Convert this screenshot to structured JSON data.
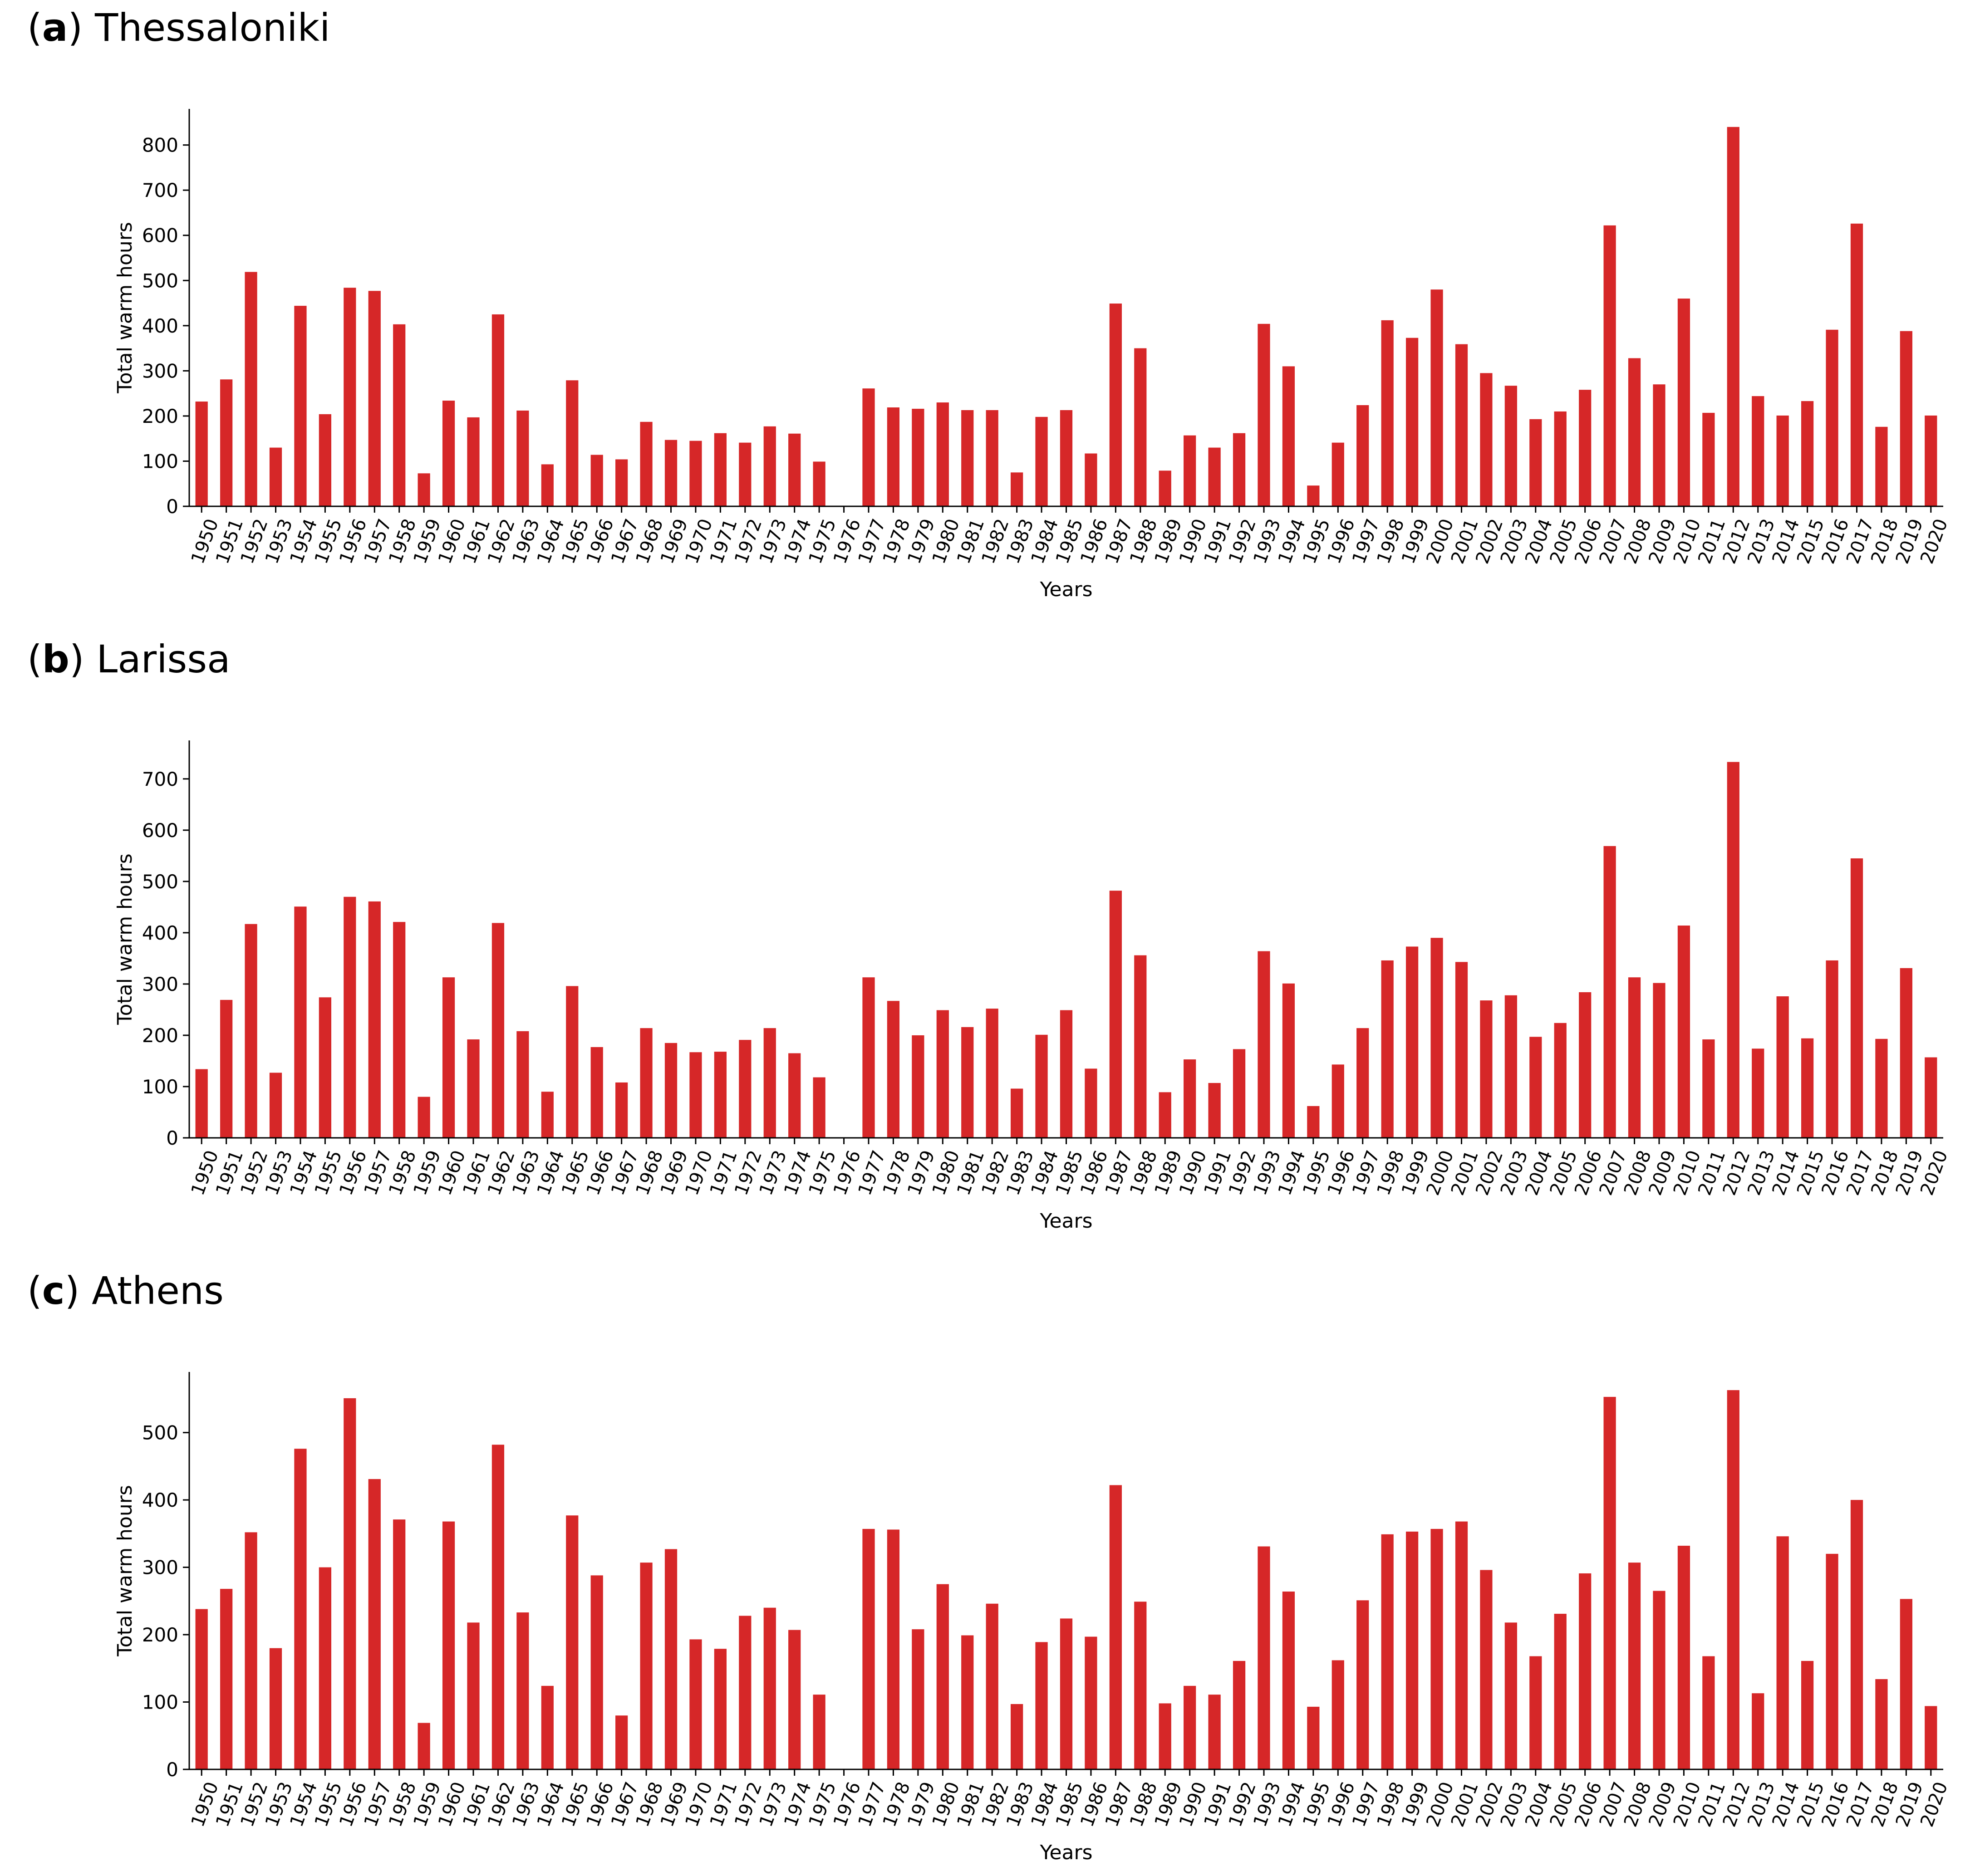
{
  "bar_color": "#d62728",
  "axis_color": "#000000",
  "chart_data": [
    {
      "type": "bar",
      "panel_letter": "a",
      "title": "Thessaloniki",
      "xlabel": "Years",
      "ylabel": "Total warm hours",
      "ylim": [
        0,
        880
      ],
      "yticks": [
        0,
        100,
        200,
        300,
        400,
        500,
        600,
        700,
        800
      ],
      "categories": [
        "1950",
        "1951",
        "1952",
        "1953",
        "1954",
        "1955",
        "1956",
        "1957",
        "1958",
        "1959",
        "1960",
        "1961",
        "1962",
        "1963",
        "1964",
        "1965",
        "1966",
        "1967",
        "1968",
        "1969",
        "1970",
        "1971",
        "1972",
        "1973",
        "1974",
        "1975",
        "1976",
        "1977",
        "1978",
        "1979",
        "1980",
        "1981",
        "1982",
        "1983",
        "1984",
        "1985",
        "1986",
        "1987",
        "1988",
        "1989",
        "1990",
        "1991",
        "1992",
        "1993",
        "1994",
        "1995",
        "1996",
        "1997",
        "1998",
        "1999",
        "2000",
        "2001",
        "2002",
        "2003",
        "2004",
        "2005",
        "2006",
        "2007",
        "2008",
        "2009",
        "2010",
        "2011",
        "2012",
        "2013",
        "2014",
        "2015",
        "2016",
        "2017",
        "2018",
        "2019",
        "2020"
      ],
      "values": [
        232,
        281,
        519,
        130,
        444,
        204,
        484,
        477,
        403,
        73,
        234,
        197,
        425,
        212,
        93,
        279,
        114,
        104,
        187,
        147,
        145,
        162,
        141,
        177,
        161,
        99,
        0,
        261,
        219,
        216,
        230,
        213,
        213,
        75,
        198,
        213,
        117,
        449,
        350,
        79,
        157,
        130,
        162,
        404,
        310,
        46,
        141,
        224,
        412,
        373,
        480,
        359,
        295,
        267,
        193,
        210,
        258,
        622,
        328,
        270,
        460,
        207,
        840,
        244,
        201,
        233,
        391,
        626,
        176,
        388,
        201
      ]
    },
    {
      "type": "bar",
      "panel_letter": "b",
      "title": "Larissa",
      "xlabel": "Years",
      "ylabel": "Total warm hours",
      "ylim": [
        0,
        775
      ],
      "yticks": [
        0,
        100,
        200,
        300,
        400,
        500,
        600,
        700
      ],
      "categories": [
        "1950",
        "1951",
        "1952",
        "1953",
        "1954",
        "1955",
        "1956",
        "1957",
        "1958",
        "1959",
        "1960",
        "1961",
        "1962",
        "1963",
        "1964",
        "1965",
        "1966",
        "1967",
        "1968",
        "1969",
        "1970",
        "1971",
        "1972",
        "1973",
        "1974",
        "1975",
        "1976",
        "1977",
        "1978",
        "1979",
        "1980",
        "1981",
        "1982",
        "1983",
        "1984",
        "1985",
        "1986",
        "1987",
        "1988",
        "1989",
        "1990",
        "1991",
        "1992",
        "1993",
        "1994",
        "1995",
        "1996",
        "1997",
        "1998",
        "1999",
        "2000",
        "2001",
        "2002",
        "2003",
        "2004",
        "2005",
        "2006",
        "2007",
        "2008",
        "2009",
        "2010",
        "2011",
        "2012",
        "2013",
        "2014",
        "2015",
        "2016",
        "2017",
        "2018",
        "2019",
        "2020"
      ],
      "values": [
        134,
        269,
        417,
        127,
        451,
        274,
        470,
        461,
        421,
        80,
        313,
        192,
        419,
        208,
        90,
        296,
        177,
        108,
        214,
        185,
        167,
        168,
        191,
        214,
        165,
        118,
        0,
        313,
        267,
        200,
        249,
        216,
        252,
        96,
        201,
        249,
        135,
        482,
        356,
        89,
        153,
        107,
        173,
        364,
        301,
        62,
        143,
        214,
        346,
        373,
        390,
        343,
        268,
        278,
        197,
        224,
        284,
        569,
        313,
        302,
        414,
        192,
        733,
        174,
        276,
        194,
        346,
        545,
        193,
        331,
        157
      ]
    },
    {
      "type": "bar",
      "panel_letter": "c",
      "title": "Athens",
      "xlabel": "Years",
      "ylabel": "Total warm hours",
      "ylim": [
        0,
        590
      ],
      "yticks": [
        0,
        100,
        200,
        300,
        400,
        500
      ],
      "categories": [
        "1950",
        "1951",
        "1952",
        "1953",
        "1954",
        "1955",
        "1956",
        "1957",
        "1958",
        "1959",
        "1960",
        "1961",
        "1962",
        "1963",
        "1964",
        "1965",
        "1966",
        "1967",
        "1968",
        "1969",
        "1970",
        "1971",
        "1972",
        "1973",
        "1974",
        "1975",
        "1976",
        "1977",
        "1978",
        "1979",
        "1980",
        "1981",
        "1982",
        "1983",
        "1984",
        "1985",
        "1986",
        "1987",
        "1988",
        "1989",
        "1990",
        "1991",
        "1992",
        "1993",
        "1994",
        "1995",
        "1996",
        "1997",
        "1998",
        "1999",
        "2000",
        "2001",
        "2002",
        "2003",
        "2004",
        "2005",
        "2006",
        "2007",
        "2008",
        "2009",
        "2010",
        "2011",
        "2012",
        "2013",
        "2014",
        "2015",
        "2016",
        "2017",
        "2018",
        "2019",
        "2020"
      ],
      "values": [
        238,
        268,
        352,
        180,
        476,
        300,
        551,
        431,
        371,
        69,
        368,
        218,
        482,
        233,
        124,
        377,
        288,
        80,
        307,
        327,
        193,
        179,
        228,
        240,
        207,
        111,
        0,
        357,
        356,
        208,
        275,
        199,
        246,
        97,
        189,
        224,
        197,
        422,
        249,
        98,
        124,
        111,
        161,
        331,
        264,
        93,
        162,
        251,
        349,
        353,
        357,
        368,
        296,
        218,
        168,
        231,
        291,
        553,
        307,
        265,
        332,
        168,
        563,
        113,
        346,
        161,
        320,
        400,
        134,
        253,
        94
      ]
    }
  ]
}
